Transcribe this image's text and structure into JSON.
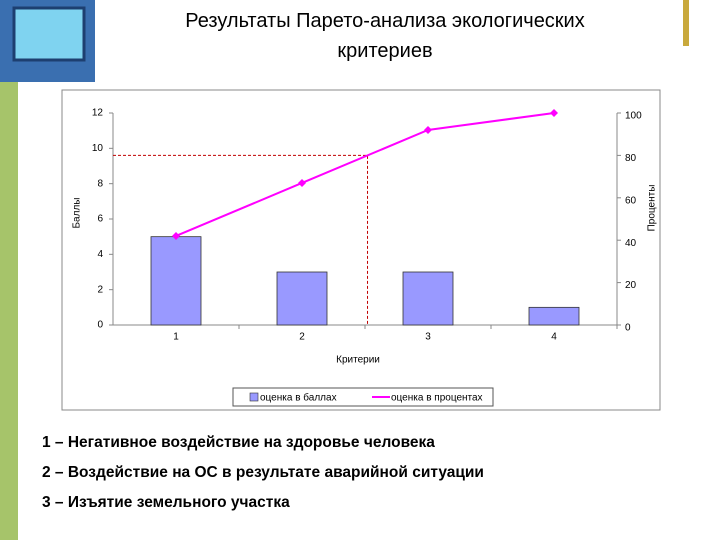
{
  "slide": {
    "title": "Результаты Парето-анализа экологических критериев",
    "notes": [
      "1 – Негативное воздействие на здоровье человека",
      "2 – Воздействие на ОС в результате аварийной ситуации",
      "3 – Изъятие земельного участка"
    ]
  },
  "chart_data": {
    "type": "pareto",
    "x_label": "Критерии",
    "y_label": "Баллы",
    "y2_label": "Проценты",
    "categories": [
      "1",
      "2",
      "3",
      "4"
    ],
    "series": [
      {
        "name": "оценка в баллах",
        "color": "#9999ff",
        "values": [
          5,
          3,
          3,
          1
        ]
      },
      {
        "name": "оценка в процентах",
        "color": "#ff00ff",
        "axis": "y2",
        "values": [
          42,
          67,
          92,
          100
        ]
      }
    ],
    "ylim": [
      0,
      12
    ],
    "yticks": [
      0,
      2,
      4,
      6,
      8,
      10,
      12
    ],
    "y2lim": [
      0,
      100
    ],
    "y2ticks": [
      0,
      20,
      40,
      60,
      80,
      100
    ],
    "threshold": 80,
    "threshold_color": "#c00000",
    "legend": "bottom"
  }
}
